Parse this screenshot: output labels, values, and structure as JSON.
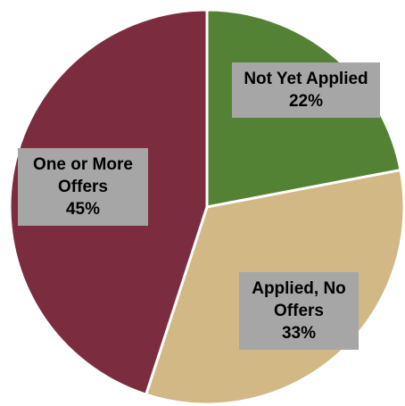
{
  "chart_data": {
    "type": "pie",
    "categories": [
      "Not Yet Applied",
      "Applied, No Offers",
      "One or More Offers"
    ],
    "values": [
      22,
      33,
      45
    ],
    "value_labels": [
      "22%",
      "33%",
      "45%"
    ],
    "colors": [
      "#548235",
      "#d1b884",
      "#7b2c3e"
    ]
  }
}
